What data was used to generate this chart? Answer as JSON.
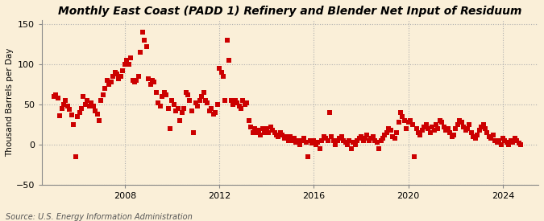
{
  "title": "Monthly East Coast (PADD 1) Refinery and Blender Net Input of Residuum",
  "ylabel": "Thousand Barrels per Day",
  "source": "Source: U.S. Energy Information Administration",
  "ylim": [
    -50,
    155
  ],
  "yticks": [
    -50,
    0,
    50,
    100,
    150
  ],
  "xlim": [
    2004.5,
    2025.5
  ],
  "xticks": [
    2008,
    2012,
    2016,
    2020,
    2024
  ],
  "marker_color": "#cc0000",
  "background_color": "#faefd8",
  "plot_bg_color": "#faefd8",
  "marker": "s",
  "markersize": 4,
  "grid_color": "#b0b0b0",
  "grid_style": ":",
  "title_fontsize": 10,
  "label_fontsize": 7.5,
  "tick_fontsize": 8,
  "source_fontsize": 7,
  "data": [
    [
      2005.0,
      60
    ],
    [
      2005.083,
      62
    ],
    [
      2005.167,
      58
    ],
    [
      2005.25,
      36
    ],
    [
      2005.333,
      45
    ],
    [
      2005.417,
      50
    ],
    [
      2005.5,
      55
    ],
    [
      2005.583,
      48
    ],
    [
      2005.667,
      44
    ],
    [
      2005.75,
      37
    ],
    [
      2005.833,
      25
    ],
    [
      2005.917,
      -15
    ],
    [
      2006.0,
      35
    ],
    [
      2006.083,
      40
    ],
    [
      2006.167,
      45
    ],
    [
      2006.25,
      60
    ],
    [
      2006.333,
      50
    ],
    [
      2006.417,
      55
    ],
    [
      2006.5,
      48
    ],
    [
      2006.583,
      52
    ],
    [
      2006.667,
      48
    ],
    [
      2006.75,
      42
    ],
    [
      2006.833,
      38
    ],
    [
      2006.917,
      30
    ],
    [
      2007.0,
      55
    ],
    [
      2007.083,
      62
    ],
    [
      2007.167,
      70
    ],
    [
      2007.25,
      80
    ],
    [
      2007.333,
      75
    ],
    [
      2007.417,
      78
    ],
    [
      2007.5,
      85
    ],
    [
      2007.583,
      90
    ],
    [
      2007.667,
      88
    ],
    [
      2007.75,
      82
    ],
    [
      2007.833,
      85
    ],
    [
      2007.917,
      92
    ],
    [
      2008.0,
      100
    ],
    [
      2008.083,
      105
    ],
    [
      2008.167,
      100
    ],
    [
      2008.25,
      108
    ],
    [
      2008.333,
      80
    ],
    [
      2008.417,
      78
    ],
    [
      2008.5,
      80
    ],
    [
      2008.583,
      85
    ],
    [
      2008.667,
      115
    ],
    [
      2008.75,
      140
    ],
    [
      2008.833,
      130
    ],
    [
      2008.917,
      122
    ],
    [
      2009.0,
      82
    ],
    [
      2009.083,
      75
    ],
    [
      2009.167,
      80
    ],
    [
      2009.25,
      78
    ],
    [
      2009.333,
      65
    ],
    [
      2009.417,
      52
    ],
    [
      2009.5,
      48
    ],
    [
      2009.583,
      60
    ],
    [
      2009.667,
      65
    ],
    [
      2009.75,
      62
    ],
    [
      2009.833,
      45
    ],
    [
      2009.917,
      20
    ],
    [
      2010.0,
      55
    ],
    [
      2010.083,
      50
    ],
    [
      2010.167,
      42
    ],
    [
      2010.25,
      45
    ],
    [
      2010.333,
      30
    ],
    [
      2010.417,
      40
    ],
    [
      2010.5,
      45
    ],
    [
      2010.583,
      65
    ],
    [
      2010.667,
      62
    ],
    [
      2010.75,
      55
    ],
    [
      2010.833,
      42
    ],
    [
      2010.917,
      15
    ],
    [
      2011.0,
      52
    ],
    [
      2011.083,
      48
    ],
    [
      2011.167,
      55
    ],
    [
      2011.25,
      60
    ],
    [
      2011.333,
      65
    ],
    [
      2011.417,
      55
    ],
    [
      2011.5,
      52
    ],
    [
      2011.583,
      42
    ],
    [
      2011.667,
      45
    ],
    [
      2011.75,
      38
    ],
    [
      2011.833,
      40
    ],
    [
      2011.917,
      50
    ],
    [
      2012.0,
      95
    ],
    [
      2012.083,
      90
    ],
    [
      2012.167,
      85
    ],
    [
      2012.25,
      55
    ],
    [
      2012.333,
      130
    ],
    [
      2012.417,
      105
    ],
    [
      2012.5,
      55
    ],
    [
      2012.583,
      50
    ],
    [
      2012.667,
      55
    ],
    [
      2012.75,
      52
    ],
    [
      2012.833,
      48
    ],
    [
      2012.917,
      45
    ],
    [
      2013.0,
      55
    ],
    [
      2013.083,
      50
    ],
    [
      2013.167,
      52
    ],
    [
      2013.25,
      30
    ],
    [
      2013.333,
      22
    ],
    [
      2013.417,
      15
    ],
    [
      2013.5,
      20
    ],
    [
      2013.583,
      15
    ],
    [
      2013.667,
      18
    ],
    [
      2013.75,
      12
    ],
    [
      2013.833,
      20
    ],
    [
      2013.917,
      15
    ],
    [
      2014.0,
      20
    ],
    [
      2014.083,
      15
    ],
    [
      2014.167,
      22
    ],
    [
      2014.25,
      18
    ],
    [
      2014.333,
      15
    ],
    [
      2014.417,
      12
    ],
    [
      2014.5,
      10
    ],
    [
      2014.583,
      15
    ],
    [
      2014.667,
      12
    ],
    [
      2014.75,
      8
    ],
    [
      2014.833,
      10
    ],
    [
      2014.917,
      5
    ],
    [
      2015.0,
      10
    ],
    [
      2015.083,
      5
    ],
    [
      2015.167,
      8
    ],
    [
      2015.25,
      3
    ],
    [
      2015.333,
      5
    ],
    [
      2015.417,
      0
    ],
    [
      2015.5,
      5
    ],
    [
      2015.583,
      8
    ],
    [
      2015.667,
      3
    ],
    [
      2015.75,
      -15
    ],
    [
      2015.833,
      5
    ],
    [
      2015.917,
      2
    ],
    [
      2016.0,
      5
    ],
    [
      2016.083,
      0
    ],
    [
      2016.167,
      3
    ],
    [
      2016.25,
      -5
    ],
    [
      2016.333,
      5
    ],
    [
      2016.417,
      10
    ],
    [
      2016.5,
      8
    ],
    [
      2016.583,
      5
    ],
    [
      2016.667,
      40
    ],
    [
      2016.75,
      10
    ],
    [
      2016.833,
      5
    ],
    [
      2016.917,
      0
    ],
    [
      2017.0,
      5
    ],
    [
      2017.083,
      8
    ],
    [
      2017.167,
      10
    ],
    [
      2017.25,
      5
    ],
    [
      2017.333,
      3
    ],
    [
      2017.417,
      0
    ],
    [
      2017.5,
      5
    ],
    [
      2017.583,
      -5
    ],
    [
      2017.667,
      3
    ],
    [
      2017.75,
      0
    ],
    [
      2017.833,
      5
    ],
    [
      2017.917,
      8
    ],
    [
      2018.0,
      10
    ],
    [
      2018.083,
      5
    ],
    [
      2018.167,
      8
    ],
    [
      2018.25,
      12
    ],
    [
      2018.333,
      5
    ],
    [
      2018.417,
      8
    ],
    [
      2018.5,
      10
    ],
    [
      2018.583,
      5
    ],
    [
      2018.667,
      3
    ],
    [
      2018.75,
      -5
    ],
    [
      2018.833,
      5
    ],
    [
      2018.917,
      8
    ],
    [
      2019.0,
      12
    ],
    [
      2019.083,
      15
    ],
    [
      2019.167,
      20
    ],
    [
      2019.25,
      18
    ],
    [
      2019.333,
      10
    ],
    [
      2019.417,
      8
    ],
    [
      2019.5,
      15
    ],
    [
      2019.583,
      28
    ],
    [
      2019.667,
      40
    ],
    [
      2019.75,
      35
    ],
    [
      2019.833,
      30
    ],
    [
      2019.917,
      20
    ],
    [
      2020.0,
      28
    ],
    [
      2020.083,
      30
    ],
    [
      2020.167,
      25
    ],
    [
      2020.25,
      -15
    ],
    [
      2020.333,
      20
    ],
    [
      2020.417,
      15
    ],
    [
      2020.5,
      12
    ],
    [
      2020.583,
      18
    ],
    [
      2020.667,
      22
    ],
    [
      2020.75,
      25
    ],
    [
      2020.833,
      20
    ],
    [
      2020.917,
      15
    ],
    [
      2021.0,
      22
    ],
    [
      2021.083,
      18
    ],
    [
      2021.167,
      25
    ],
    [
      2021.25,
      20
    ],
    [
      2021.333,
      30
    ],
    [
      2021.417,
      28
    ],
    [
      2021.5,
      22
    ],
    [
      2021.583,
      18
    ],
    [
      2021.667,
      20
    ],
    [
      2021.75,
      15
    ],
    [
      2021.833,
      10
    ],
    [
      2021.917,
      12
    ],
    [
      2022.0,
      20
    ],
    [
      2022.083,
      25
    ],
    [
      2022.167,
      30
    ],
    [
      2022.25,
      28
    ],
    [
      2022.333,
      22
    ],
    [
      2022.417,
      18
    ],
    [
      2022.5,
      20
    ],
    [
      2022.583,
      25
    ],
    [
      2022.667,
      15
    ],
    [
      2022.75,
      10
    ],
    [
      2022.833,
      8
    ],
    [
      2022.917,
      12
    ],
    [
      2023.0,
      18
    ],
    [
      2023.083,
      22
    ],
    [
      2023.167,
      25
    ],
    [
      2023.25,
      20
    ],
    [
      2023.333,
      15
    ],
    [
      2023.417,
      10
    ],
    [
      2023.5,
      8
    ],
    [
      2023.583,
      12
    ],
    [
      2023.667,
      5
    ],
    [
      2023.75,
      3
    ],
    [
      2023.833,
      5
    ],
    [
      2023.917,
      0
    ],
    [
      2024.0,
      8
    ],
    [
      2024.083,
      5
    ],
    [
      2024.167,
      3
    ],
    [
      2024.25,
      0
    ],
    [
      2024.333,
      5
    ],
    [
      2024.417,
      3
    ],
    [
      2024.5,
      8
    ],
    [
      2024.583,
      5
    ],
    [
      2024.667,
      2
    ],
    [
      2024.75,
      0
    ]
  ]
}
